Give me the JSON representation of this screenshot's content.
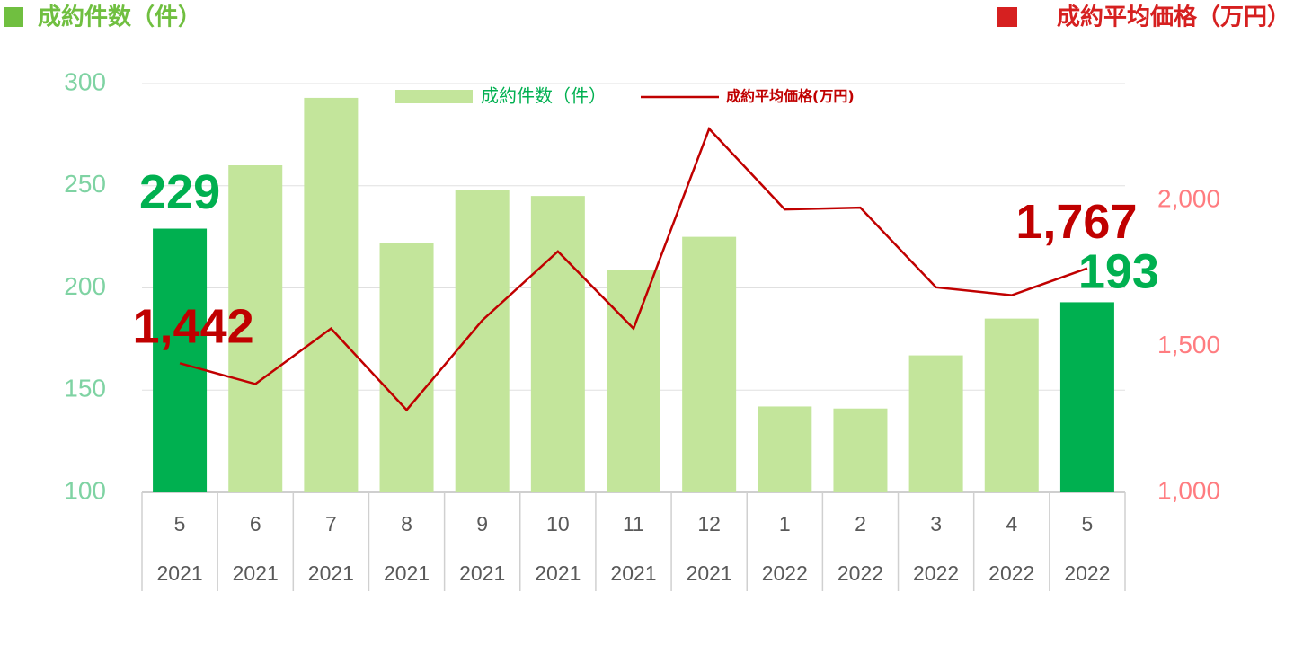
{
  "chart_data": {
    "type": "bar-line",
    "left_axis_title": "成約件数（件）",
    "right_axis_title": "成約平均価格（万円）",
    "categories": [
      "5",
      "6",
      "7",
      "8",
      "9",
      "10",
      "11",
      "12",
      "1",
      "2",
      "3",
      "4",
      "5"
    ],
    "years": [
      "2021",
      "2021",
      "2021",
      "2021",
      "2021",
      "2021",
      "2021",
      "2021",
      "2022",
      "2022",
      "2022",
      "2022",
      "2022"
    ],
    "series": [
      {
        "name": "成約件数（件）",
        "type": "bar",
        "color": "#c3e59b",
        "highlight_color": "#00b050",
        "values": [
          229,
          260,
          293,
          222,
          248,
          245,
          209,
          225,
          142,
          141,
          167,
          185,
          193
        ],
        "value_labels": [
          "229",
          null,
          null,
          null,
          null,
          null,
          null,
          null,
          null,
          null,
          null,
          null,
          "193"
        ]
      },
      {
        "name": "成約平均価格(万円)",
        "type": "line",
        "axis": "y2",
        "color": "#c00000",
        "values": [
          1442,
          1371,
          1561,
          1282,
          1589,
          1825,
          1561,
          2245,
          1969,
          1975,
          1702,
          1675,
          1767
        ],
        "value_labels": [
          "1,442",
          null,
          null,
          null,
          null,
          null,
          null,
          null,
          null,
          null,
          null,
          null,
          "1,767"
        ]
      }
    ],
    "ylim": [
      100,
      300
    ],
    "yticks": [
      100,
      150,
      200,
      250,
      300
    ],
    "y2lim": [
      1000,
      2400
    ],
    "y2ticks": [
      {
        "value": 1000,
        "label": "1,000"
      },
      {
        "value": 1500,
        "label": "1,500"
      },
      {
        "value": 2000,
        "label": "2,000"
      }
    ],
    "grid": true
  }
}
